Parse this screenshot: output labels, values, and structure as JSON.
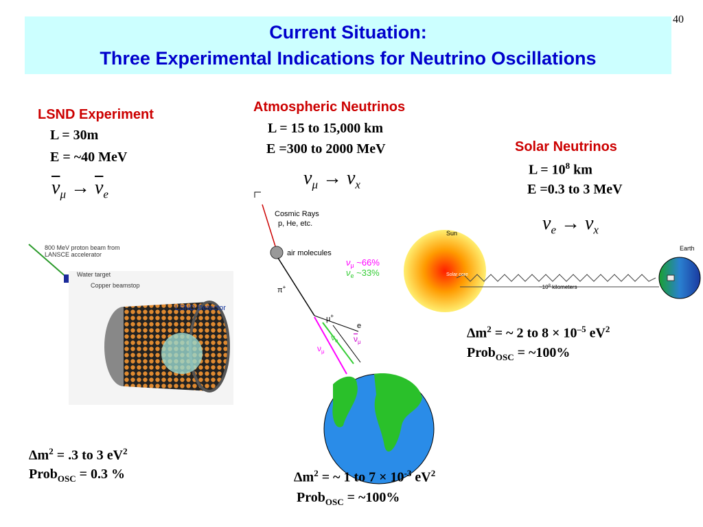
{
  "page_number": "40",
  "title": {
    "line1": "Current Situation:",
    "line2": "Three Experimental Indications for Neutrino Oscillations"
  },
  "lsnd": {
    "heading": "LSND Experiment",
    "length": "L = 30m",
    "energy": "E = ~40 MeV",
    "reaction": {
      "from": "ν",
      "from_sub": "μ",
      "arrow": "→",
      "to": "ν",
      "to_sub": "e"
    },
    "diagram": {
      "beam_line1": "800 MeV proton beam from",
      "beam_line2": "LANSCE accelerator",
      "target": "Water target",
      "beamstop": "Copper beamstop",
      "detector": "LSND Detector"
    },
    "dm2": [
      "Δm",
      "2",
      " = .3 to 3 eV",
      "2"
    ],
    "prob": [
      "Prob",
      "OSC",
      " = 0.3 %"
    ]
  },
  "atmospheric": {
    "heading": "Atmospheric Neutrinos",
    "length": "L = 15 to 15,000 km",
    "energy": "E =300 to 2000 MeV",
    "reaction": {
      "from": "ν",
      "from_sub": "μ",
      "arrow": "→",
      "to": "ν",
      "to_sub": "x"
    },
    "diagram": {
      "cosmic": "Cosmic Rays",
      "cosmic_sub": "p, He, etc.",
      "air": "air molecules",
      "pion": [
        "π",
        "+"
      ],
      "muon": [
        "μ",
        "+"
      ],
      "electron": "e",
      "numu_frac": [
        "ν",
        "μ",
        " ~66%"
      ],
      "nue_frac": [
        "ν",
        "e",
        " ~33%"
      ],
      "numu": [
        "ν",
        "μ"
      ],
      "nue": [
        "ν",
        "e"
      ],
      "numubar": [
        "ν",
        "μ"
      ]
    },
    "dm2": [
      "Δm",
      "2",
      " = ~ 1 to 7 × 10",
      "-3",
      " eV",
      "2"
    ],
    "prob": [
      "Prob",
      "OSC",
      " = ~100%"
    ]
  },
  "solar": {
    "heading": "Solar Neutrinos",
    "length": [
      "L = 10",
      "8",
      " km"
    ],
    "energy": "E =0.3 to 3 MeV",
    "reaction": {
      "from": "ν",
      "from_sub": "e",
      "arrow": "→",
      "to": "ν",
      "to_sub": "x"
    },
    "diagram": {
      "sun": "Sun",
      "earth": "Earth",
      "core": "Solar core",
      "distance": [
        "~10",
        "8",
        " kilometers"
      ]
    },
    "dm2": [
      "Δm",
      "2",
      " = ~ 2 to 8 × 10",
      "–5",
      " eV",
      "2"
    ],
    "prob": [
      "Prob",
      "OSC",
      " = ~100%"
    ]
  }
}
